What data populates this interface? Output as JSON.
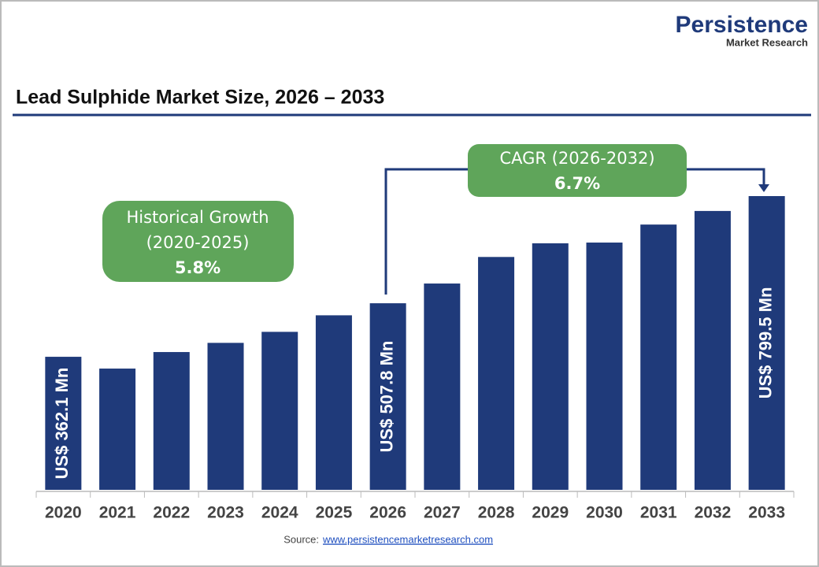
{
  "logo": {
    "brand": "Persistence",
    "sub": "Market Research"
  },
  "chart_data": {
    "type": "bar",
    "title": "Lead Sulphide Market Size, 2026 – 2033",
    "categories": [
      "2020",
      "2021",
      "2022",
      "2023",
      "2024",
      "2025",
      "2026",
      "2027",
      "2028",
      "2029",
      "2030",
      "2031",
      "2032",
      "2033"
    ],
    "values": [
      362.1,
      330,
      375,
      400,
      430,
      475,
      507.8,
      561.5,
      633.8,
      671,
      673,
      722,
      759,
      799.5
    ],
    "value_labels": [
      "US$ 362.1 Mn",
      null,
      null,
      null,
      null,
      null,
      "US$ 507.8 Mn",
      null,
      null,
      null,
      null,
      null,
      null,
      "US$ 799.5 Mn"
    ],
    "color": "#1f3a7a",
    "annotations": {
      "historical": {
        "label": "Historical Growth",
        "period": "(2020-2025)",
        "value": "5.8%"
      },
      "cagr": {
        "label": "CAGR (2026-2032)",
        "value": "6.7%"
      }
    },
    "source": {
      "prefix": "Source:",
      "url": "www.persistencemarketresearch.com"
    }
  }
}
